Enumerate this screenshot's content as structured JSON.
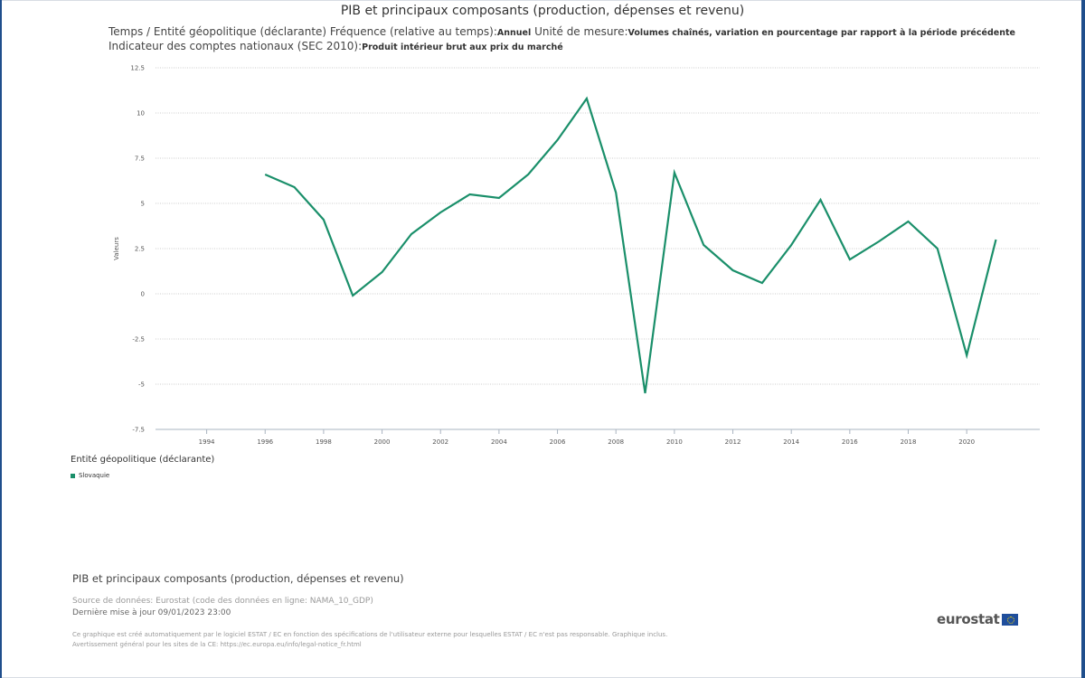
{
  "title": "PIB et principaux composants (production, dépenses et revenu)",
  "subtitle": {
    "part1": "Temps / Entité géopolitique (déclarante)  Fréquence (relative au temps):",
    "freq_value": "Annuel",
    "part2": "  Unité de mesure:",
    "unit_value": "Volumes chaînés, variation en pourcentage par rapport à la période précédente",
    "part3": "  Indicateur des comptes nationaux (SEC 2010):",
    "indicator_value": "Produit intérieur brut aux prix du marché"
  },
  "legend": {
    "title": "Entité géopolitique (déclarante)",
    "item": "Slovaquie"
  },
  "footer": {
    "title": "PIB et principaux composants (production, dépenses et revenu)",
    "source": "Source de données: Eurostat (code des données en ligne: NAMA_10_GDP)",
    "updated": "Dernière mise à jour 09/01/2023 23:00",
    "note_line1": "Ce graphique est créé automatiquement par le logiciel ESTAT / EC en fonction des spécifications de l'utilisateur externe pour lesquelles ESTAT / EC n'est pas responsable. Graphique inclus.",
    "note_line2": "Avertissement général pour les sites de la CE: https://ec.europa.eu/info/legal-notice_fr.html"
  },
  "logo": {
    "text": "eurostat",
    "icon": "eu-flag-icon"
  },
  "colors": {
    "series": "#1a8f6a",
    "grid": "#999999"
  },
  "chart_data": {
    "type": "line",
    "title": "PIB et principaux composants (production, dépenses et revenu)",
    "ylabel": "Valeurs",
    "xlabel": "",
    "ylim": [
      -7.5,
      12.5
    ],
    "xlim": [
      1992.25,
      2022.5
    ],
    "y_ticks": [
      12.5,
      10,
      7.5,
      5,
      2.5,
      0,
      -2.5,
      -5,
      -7.5
    ],
    "y_tick_labels": [
      "12.5",
      "10",
      "7.5",
      "5",
      "2.5",
      "0",
      "-2.5",
      "-5",
      "-7.5"
    ],
    "x_ticks": [
      1994,
      1996,
      1998,
      2000,
      2002,
      2004,
      2006,
      2008,
      2010,
      2012,
      2014,
      2016,
      2018,
      2020
    ],
    "grid": true,
    "legend_position": "bottom-left",
    "series": [
      {
        "name": "Slovaquie",
        "color": "#1a8f6a",
        "x": [
          1996,
          1997,
          1998,
          1999,
          2000,
          2001,
          2002,
          2003,
          2004,
          2005,
          2006,
          2007,
          2008,
          2009,
          2010,
          2011,
          2012,
          2013,
          2014,
          2015,
          2016,
          2017,
          2018,
          2019,
          2020,
          2021
        ],
        "values": [
          6.6,
          5.9,
          4.1,
          -0.1,
          1.2,
          3.3,
          4.5,
          5.5,
          5.3,
          6.6,
          8.5,
          10.8,
          5.6,
          -5.5,
          6.7,
          2.7,
          1.3,
          0.6,
          2.7,
          5.2,
          1.9,
          2.9,
          4.0,
          2.5,
          -3.4,
          3.0
        ]
      }
    ]
  }
}
